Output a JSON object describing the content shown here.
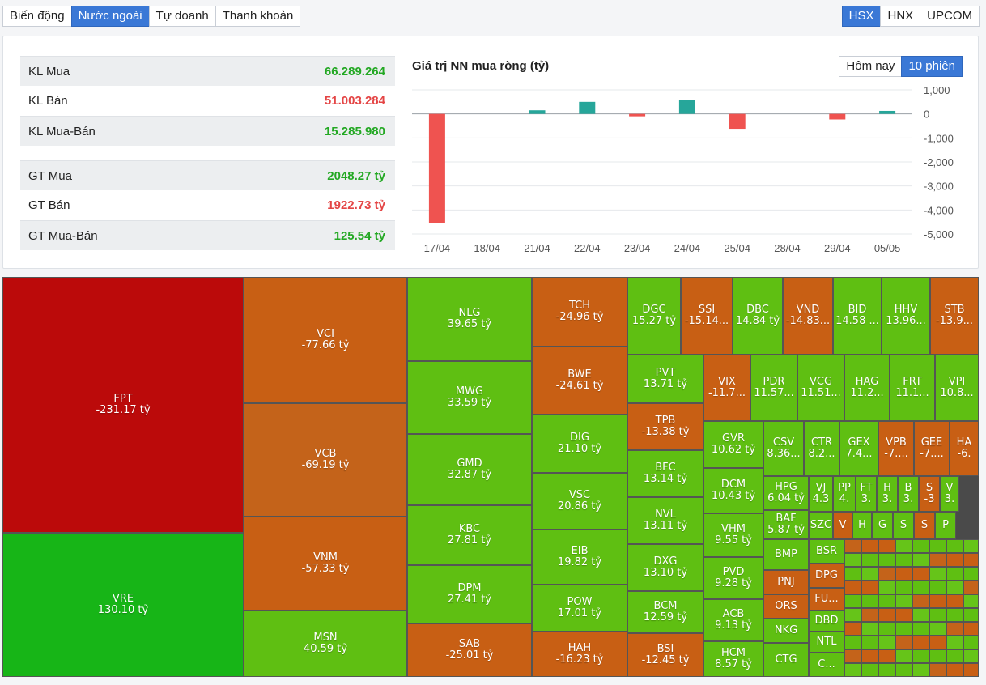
{
  "tabs": [
    "Biến động",
    "Nước ngoài",
    "Tự doanh",
    "Thanh khoản"
  ],
  "exchanges": [
    "HSX",
    "HNX",
    "UPCOM"
  ],
  "stats": [
    {
      "label": "KL Mua",
      "value": "66.289.264",
      "color": "green"
    },
    {
      "label": "KL Bán",
      "value": "51.003.284",
      "color": "red"
    },
    {
      "label": "KL Mua-Bán",
      "value": "15.285.980",
      "color": "green"
    },
    {
      "label": "GT Mua",
      "value": "2048.27 tỷ",
      "color": "green"
    },
    {
      "label": "GT Bán",
      "value": "1922.73 tỷ",
      "color": "red"
    },
    {
      "label": "GT Mua-Bán",
      "value": "125.54 tỷ",
      "color": "green"
    }
  ],
  "chart": {
    "title": "Giá trị NN mua ròng (tỷ)",
    "periods": [
      "Hôm nay",
      "10 phiên"
    ],
    "active_period": "10 phiên"
  },
  "chart_data": {
    "type": "bar",
    "categories": [
      "17/04",
      "18/04",
      "21/04",
      "22/04",
      "23/04",
      "24/04",
      "25/04",
      "28/04",
      "29/04",
      "05/05"
    ],
    "values": [
      -4550,
      0,
      150,
      500,
      -100,
      580,
      -620,
      0,
      -230,
      125
    ],
    "ylim": [
      -5000,
      1000
    ],
    "yticks": [
      "1,000",
      "0",
      "-1,000",
      "-2,000",
      "-3,000",
      "-4,000",
      "-5,000"
    ],
    "ytick_values": [
      1000,
      0,
      -1000,
      -2000,
      -3000,
      -4000,
      -5000
    ],
    "grid": true,
    "colors": {
      "positive": "#26a69a",
      "negative": "#ef5350"
    }
  },
  "treemap": [
    {
      "t": "FPT",
      "v": "-231.17 tỷ",
      "c": "c-dred"
    },
    {
      "t": "VRE",
      "v": "130.10 tỷ",
      "c": "c-bg"
    },
    {
      "t": "VCI",
      "v": "-77.66 tỷ",
      "c": "c-or"
    },
    {
      "t": "VCB",
      "v": "-69.19 tỷ",
      "c": "c-or2"
    },
    {
      "t": "VNM",
      "v": "-57.33 tỷ",
      "c": "c-or"
    },
    {
      "t": "MSN",
      "v": "40.59 tỷ",
      "c": "c-g"
    },
    {
      "t": "NLG",
      "v": "39.65 tỷ",
      "c": "c-g"
    },
    {
      "t": "MWG",
      "v": "33.59 tỷ",
      "c": "c-g"
    },
    {
      "t": "GMD",
      "v": "32.87 tỷ",
      "c": "c-g"
    },
    {
      "t": "KBC",
      "v": "27.81 tỷ",
      "c": "c-g"
    },
    {
      "t": "DPM",
      "v": "27.41 tỷ",
      "c": "c-g"
    },
    {
      "t": "SAB",
      "v": "-25.01 tỷ",
      "c": "c-or"
    },
    {
      "t": "TCH",
      "v": "-24.96 tỷ",
      "c": "c-or"
    },
    {
      "t": "BWE",
      "v": "-24.61 tỷ",
      "c": "c-or"
    },
    {
      "t": "DIG",
      "v": "21.10 tỷ",
      "c": "c-g"
    },
    {
      "t": "VSC",
      "v": "20.86 tỷ",
      "c": "c-g"
    },
    {
      "t": "EIB",
      "v": "19.82 tỷ",
      "c": "c-g"
    },
    {
      "t": "POW",
      "v": "17.01 tỷ",
      "c": "c-g"
    },
    {
      "t": "HAH",
      "v": "-16.23 tỷ",
      "c": "c-or"
    },
    {
      "t": "DGC",
      "v": "15.27 tỷ",
      "c": "c-g"
    },
    {
      "t": "SSI",
      "v": "-15.14...",
      "c": "c-or"
    },
    {
      "t": "DBC",
      "v": "14.84 tỷ",
      "c": "c-g"
    },
    {
      "t": "VND",
      "v": "-14.83...",
      "c": "c-or"
    },
    {
      "t": "BID",
      "v": "14.58 ...",
      "c": "c-g"
    },
    {
      "t": "HHV",
      "v": "13.96...",
      "c": "c-g"
    },
    {
      "t": "STB",
      "v": "-13.9...",
      "c": "c-or"
    },
    {
      "t": "PVT",
      "v": "13.71 tỷ",
      "c": "c-g"
    },
    {
      "t": "TPB",
      "v": "-13.38 tỷ",
      "c": "c-or"
    },
    {
      "t": "BFC",
      "v": "13.14 tỷ",
      "c": "c-g"
    },
    {
      "t": "NVL",
      "v": "13.11 tỷ",
      "c": "c-g"
    },
    {
      "t": "DXG",
      "v": "13.10 tỷ",
      "c": "c-g"
    },
    {
      "t": "BCM",
      "v": "12.59 tỷ",
      "c": "c-g"
    },
    {
      "t": "BSI",
      "v": "-12.45 tỷ",
      "c": "c-or"
    },
    {
      "t": "VIX",
      "v": "-11.7...",
      "c": "c-or"
    },
    {
      "t": "PDR",
      "v": "11.57...",
      "c": "c-g"
    },
    {
      "t": "VCG",
      "v": "11.51...",
      "c": "c-g"
    },
    {
      "t": "HAG",
      "v": "11.2...",
      "c": "c-g"
    },
    {
      "t": "FRT",
      "v": "11.1...",
      "c": "c-g"
    },
    {
      "t": "VPI",
      "v": "10.8...",
      "c": "c-g"
    },
    {
      "t": "GVR",
      "v": "10.62 tỷ",
      "c": "c-g"
    },
    {
      "t": "DCM",
      "v": "10.43 tỷ",
      "c": "c-g"
    },
    {
      "t": "VHM",
      "v": "9.55 tỷ",
      "c": "c-g"
    },
    {
      "t": "PVD",
      "v": "9.28 tỷ",
      "c": "c-g"
    },
    {
      "t": "ACB",
      "v": "9.13 tỷ",
      "c": "c-g"
    },
    {
      "t": "HCM",
      "v": "8.57 tỷ",
      "c": "c-g"
    },
    {
      "t": "CSV",
      "v": "8.36...",
      "c": "c-g"
    },
    {
      "t": "CTR",
      "v": "8.2...",
      "c": "c-g"
    },
    {
      "t": "GEX",
      "v": "7.4...",
      "c": "c-g"
    },
    {
      "t": "VPB",
      "v": "-7....",
      "c": "c-or"
    },
    {
      "t": "GEE",
      "v": "-7....",
      "c": "c-or"
    },
    {
      "t": "HA",
      "v": "-6.",
      "c": "c-or"
    },
    {
      "t": "HPG",
      "v": "6.04 tỷ",
      "c": "c-g"
    },
    {
      "t": "BAF",
      "v": "5.87 tỷ",
      "c": "c-g"
    },
    {
      "t": "VJ",
      "v": "4.3",
      "c": "c-g"
    },
    {
      "t": "PP",
      "v": "4.",
      "c": "c-g"
    },
    {
      "t": "FT",
      "v": "3.",
      "c": "c-g"
    },
    {
      "t": "H",
      "v": "3.",
      "c": "c-g"
    },
    {
      "t": "B",
      "v": "3.",
      "c": "c-g"
    },
    {
      "t": "S",
      "v": "-3",
      "c": "c-or"
    },
    {
      "t": "V",
      "v": "3.",
      "c": "c-g"
    },
    {
      "t": "SZC",
      "v": "",
      "c": "c-g"
    },
    {
      "t": "V",
      "v": "",
      "c": "c-or"
    },
    {
      "t": "H",
      "v": "",
      "c": "c-g"
    },
    {
      "t": "G",
      "v": "",
      "c": "c-g"
    },
    {
      "t": "S",
      "v": "",
      "c": "c-g"
    },
    {
      "t": "S",
      "v": "",
      "c": "c-or"
    },
    {
      "t": "P",
      "v": "",
      "c": "c-g"
    },
    {
      "t": "BMP",
      "v": "",
      "c": "c-g"
    },
    {
      "t": "BSR",
      "v": "",
      "c": "c-g"
    },
    {
      "t": "PNJ",
      "v": "",
      "c": "c-or"
    },
    {
      "t": "DPG",
      "v": "",
      "c": "c-or"
    },
    {
      "t": "ORS",
      "v": "",
      "c": "c-or"
    },
    {
      "t": "FU...",
      "v": "",
      "c": "c-or"
    },
    {
      "t": "DBD",
      "v": "",
      "c": "c-g"
    },
    {
      "t": "NKG",
      "v": "",
      "c": "c-g"
    },
    {
      "t": "NTL",
      "v": "",
      "c": "c-g"
    },
    {
      "t": "CTG",
      "v": "",
      "c": "c-g"
    },
    {
      "t": "C...",
      "v": "",
      "c": "c-g"
    }
  ]
}
